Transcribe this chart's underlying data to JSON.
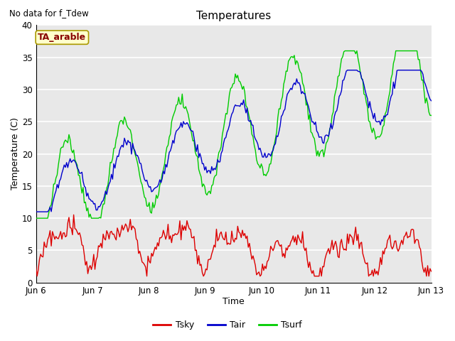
{
  "title": "Temperatures",
  "xlabel": "Time",
  "ylabel": "Temperature (C)",
  "annotation_text": "No data for f_Tdew",
  "legend_label_text": "TA_arable",
  "ylim": [
    0,
    40
  ],
  "background_color": "#e8e8e8",
  "grid_color": "white",
  "colors": {
    "Tsky": "#dd0000",
    "Tair": "#0000cc",
    "Tsurf": "#00cc00"
  },
  "legend_entries": [
    "Tsky",
    "Tair",
    "Tsurf"
  ],
  "figsize": [
    6.4,
    4.8
  ],
  "dpi": 100
}
